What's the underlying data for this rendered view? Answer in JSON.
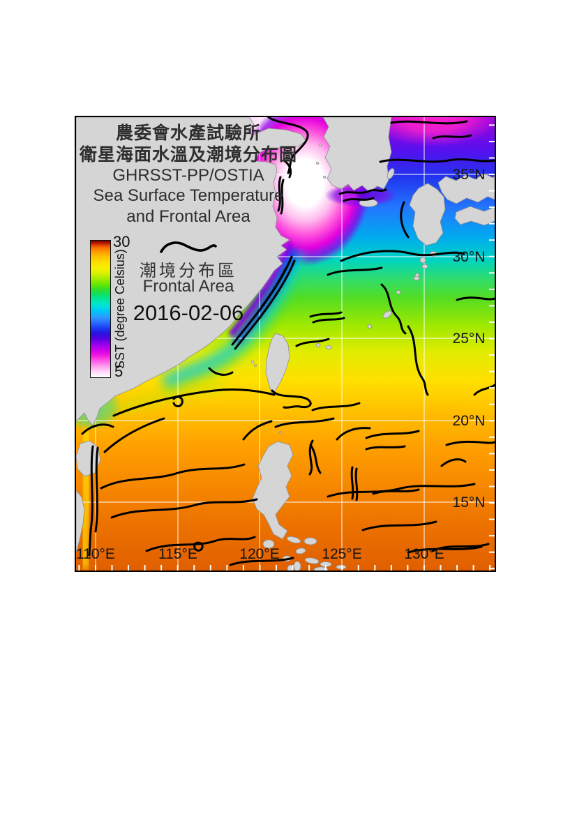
{
  "header": {
    "title_zh1": "農委會水產試驗所",
    "title_zh2": "衛星海面水溫及潮境分布圖",
    "title_en1": "GHRSST-PP/OSTIA",
    "title_en2": "Sea Surface Temperature",
    "title_en3": "and Frontal Area"
  },
  "legend": {
    "frontal_zh": "潮境分布區",
    "frontal_en": "Frontal Area",
    "date": "2016-02-06"
  },
  "colorbar": {
    "label": "SST (degree Celsius)",
    "max": "30",
    "min": "5",
    "units": "degree Celsius",
    "min_color": "#ffffff",
    "max_color": "#700800"
  },
  "map": {
    "lon_labels": [
      "110°E",
      "115°E",
      "120°E",
      "125°E",
      "130°E"
    ],
    "lat_labels": [
      "35°N",
      "30°N",
      "25°N",
      "20°N",
      "15°N"
    ],
    "grid_color": "#ffffff",
    "land_color": "#d5d5d5",
    "frontal_line_color": "#000000"
  },
  "chart_data": {
    "type": "heatmap",
    "title": "Sea Surface Temperature and Frontal Area (GHRSST-PP/OSTIA)",
    "date": "2016-02-06",
    "colorbar_label": "SST (degree Celsius)",
    "colorbar_range": [
      5,
      30
    ],
    "x_ticks": [
      "110°E",
      "115°E",
      "120°E",
      "125°E",
      "130°E"
    ],
    "y_ticks": [
      "15°N",
      "20°N",
      "25°N",
      "30°N",
      "35°N"
    ],
    "gradient_description": "warm ~27C orange south (South China Sea, Philippine Sea) grading to yellow ~23C near 25N, green ~20C near 28N, cyan/blue ~13-16C near 31N, purple/magenta ~8-10C and white <6C in Yellow Sea; black lines mark ocean thermal fronts"
  }
}
